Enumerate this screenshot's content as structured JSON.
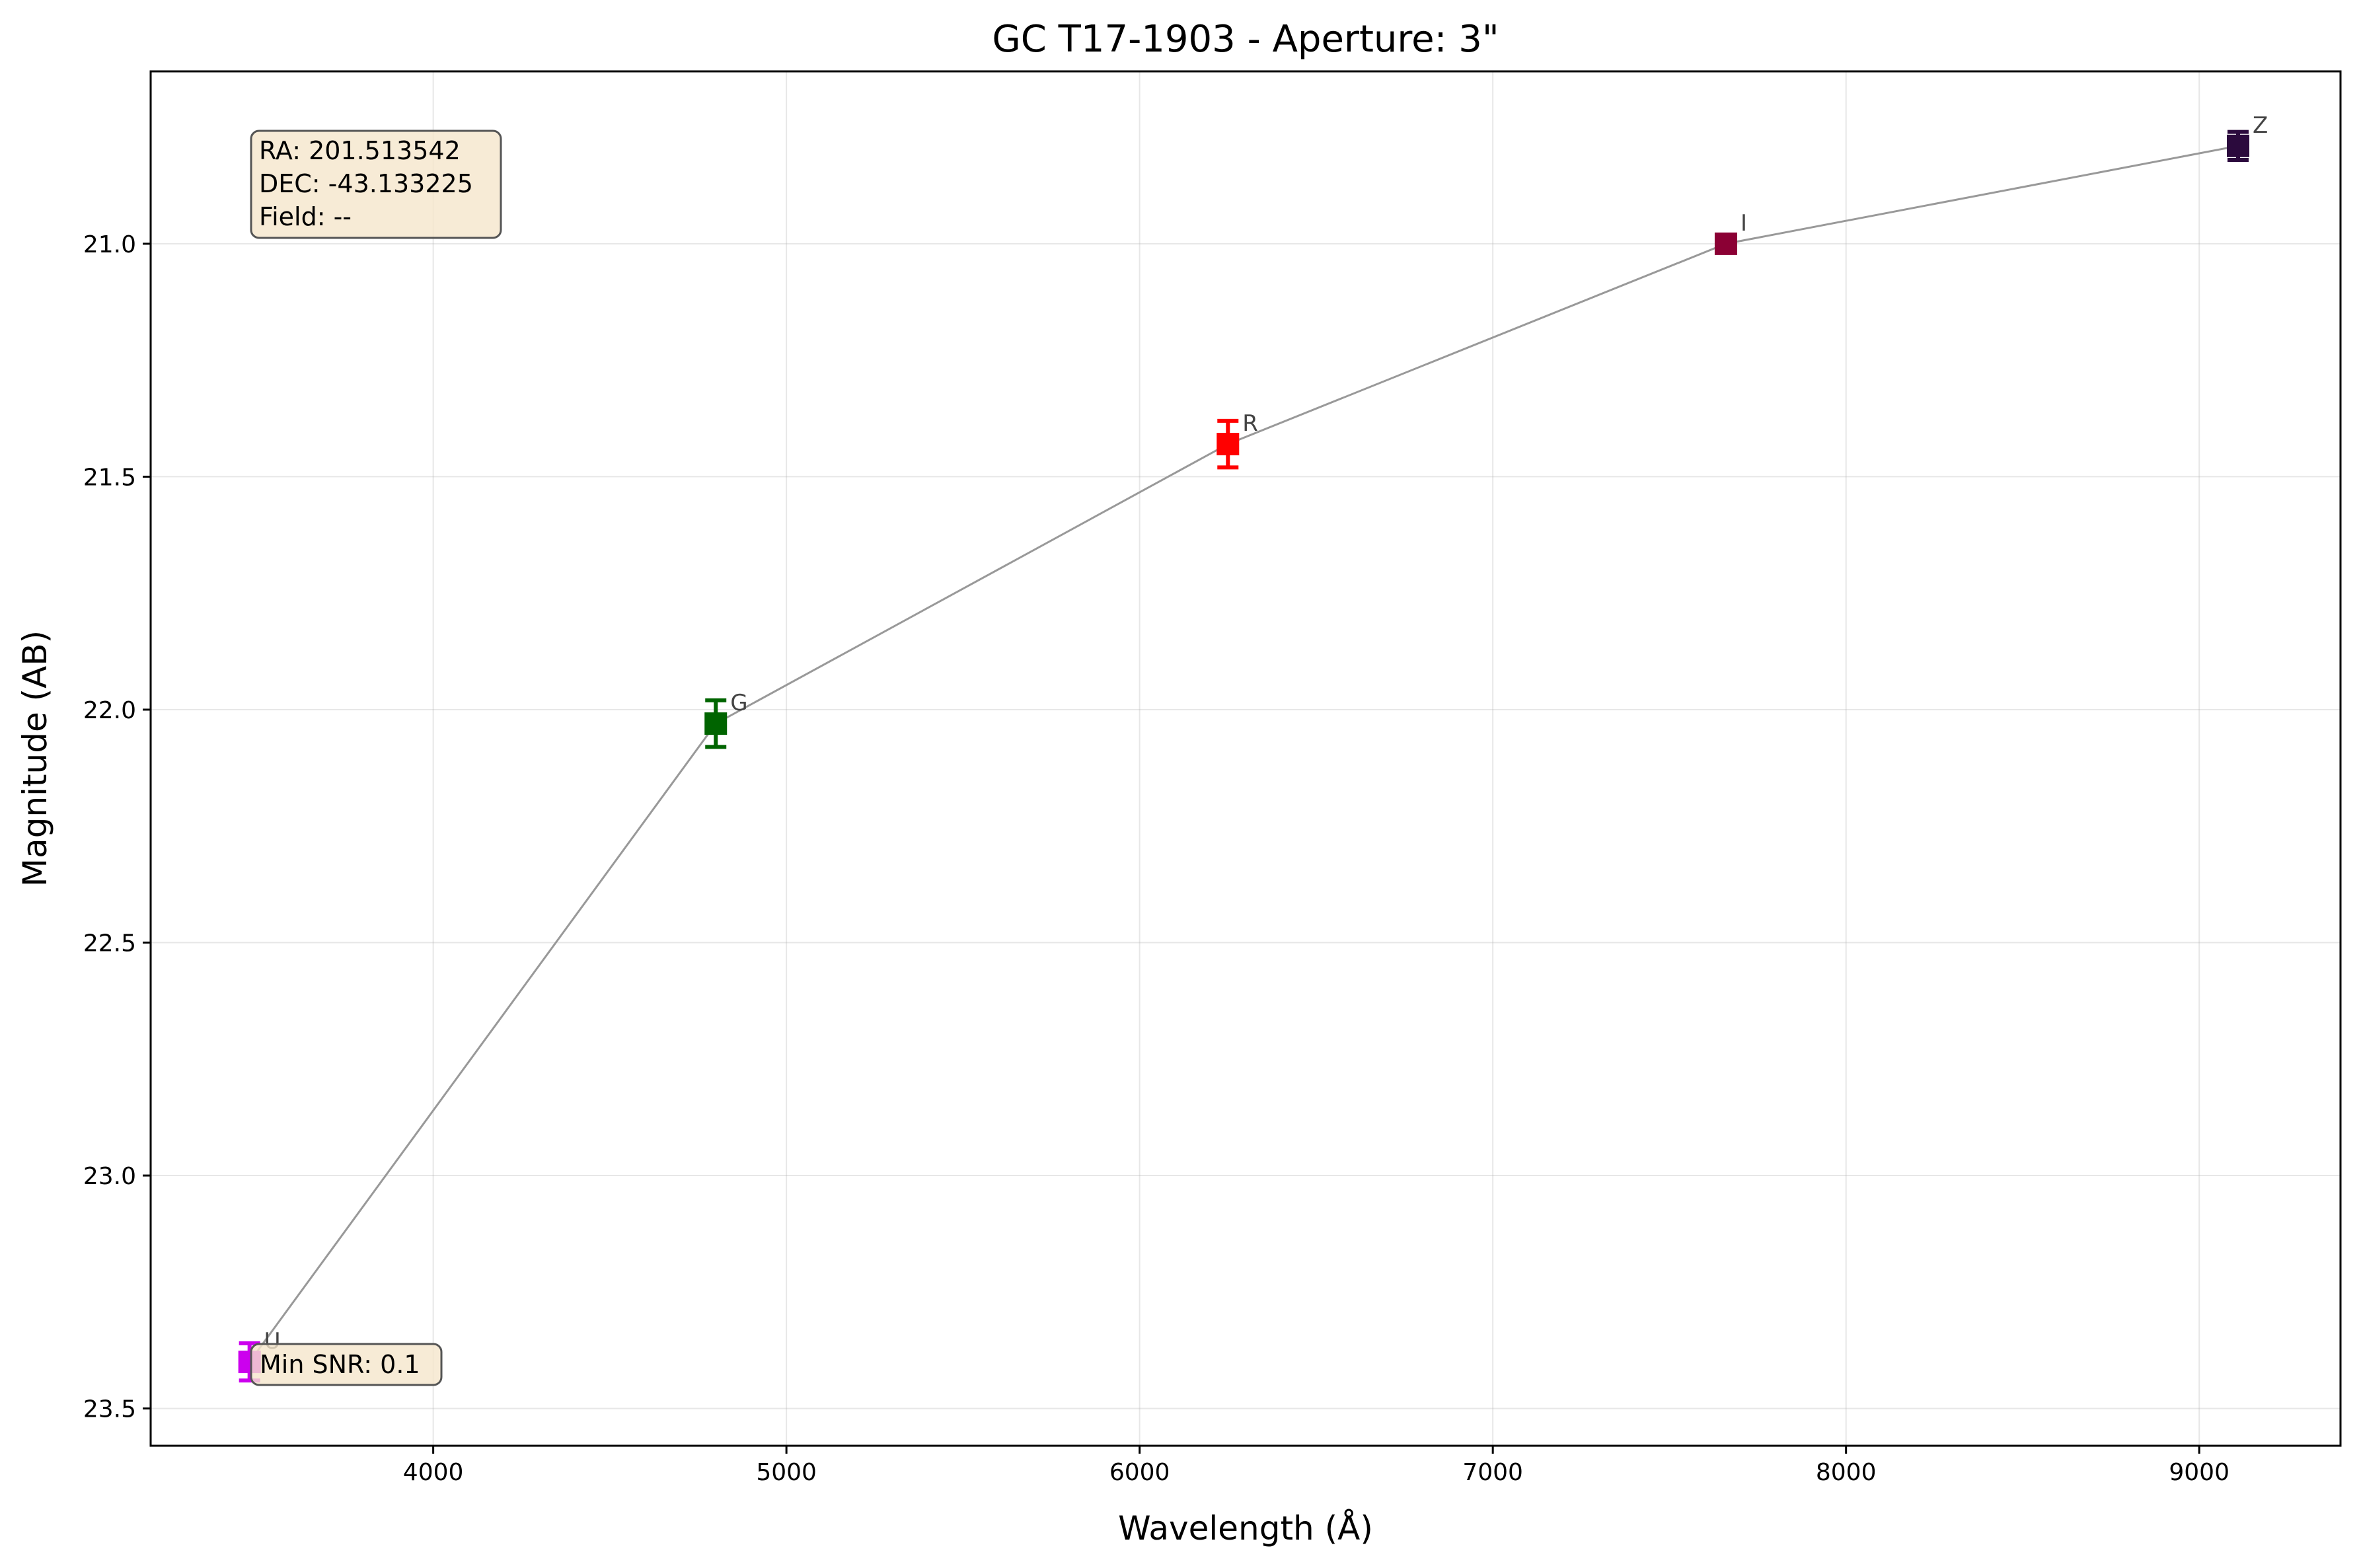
{
  "chart_data": {
    "type": "scatter",
    "title": "GC T17-1903 - Aperture: 3\"",
    "xlabel": "Wavelength (Å)",
    "ylabel": "Magnitude (AB)",
    "xlim": [
      3200,
      9400
    ],
    "ylim": [
      23.58,
      20.63
    ],
    "y_inverted": true,
    "grid": true,
    "x_ticks": [
      4000,
      5000,
      6000,
      7000,
      8000,
      9000
    ],
    "x_tick_labels": [
      "4000",
      "5000",
      "6000",
      "7000",
      "8000",
      "9000"
    ],
    "y_ticks": [
      21.0,
      21.5,
      22.0,
      22.5,
      23.0,
      23.5
    ],
    "y_tick_labels": [
      "21.0",
      "21.5",
      "22.0",
      "22.5",
      "23.0",
      "23.5"
    ],
    "connect_line_color": "#999999",
    "points": [
      {
        "band": "U",
        "x": 3480,
        "y": 23.4,
        "err": 0.04,
        "color": "#cc00ee"
      },
      {
        "band": "G",
        "x": 4800,
        "y": 22.03,
        "err": 0.05,
        "color": "#006400"
      },
      {
        "band": "R",
        "x": 6250,
        "y": 21.43,
        "err": 0.05,
        "color": "#ff0000"
      },
      {
        "band": "I",
        "x": 7660,
        "y": 21.0,
        "err": 0.01,
        "color": "#8b0034"
      },
      {
        "band": "Z",
        "x": 9110,
        "y": 20.79,
        "err": 0.03,
        "color": "#2b0a3d"
      }
    ],
    "info_box": {
      "lines": [
        "RA: 201.513542",
        "DEC: -43.133225",
        "Field: --"
      ],
      "background": "#f5e6cc"
    },
    "snr_box": {
      "text": "Min SNR: 0.1",
      "background": "#f5e6cc"
    }
  }
}
